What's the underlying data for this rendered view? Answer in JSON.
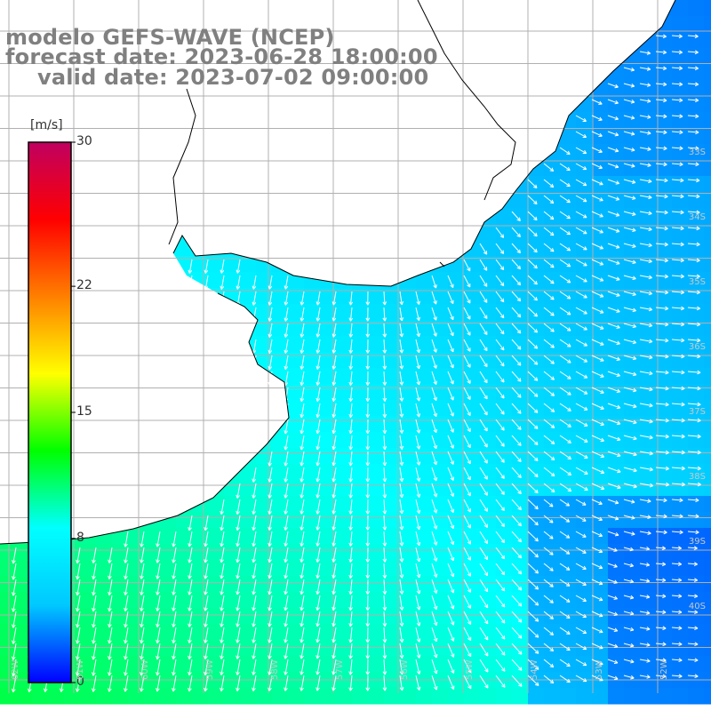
{
  "title": {
    "line1": "modelo GEFS-WAVE (NCEP)",
    "line2": "forecast date: 2023-06-28 18:00:00",
    "line3": "valid date: 2023-07-02 09:00:00"
  },
  "colorbar": {
    "unit": "[m/s]",
    "min": 0,
    "max": 30,
    "ticks": [
      {
        "value": 30,
        "label": "30"
      },
      {
        "value": 22,
        "label": "22"
      },
      {
        "value": 15,
        "label": "15"
      },
      {
        "value": 8,
        "label": "8"
      },
      {
        "value": 0,
        "label": "0"
      }
    ],
    "colors": [
      "#0000ff",
      "#00c8ff",
      "#00ffff",
      "#00ff00",
      "#ffff00",
      "#ff8000",
      "#ff0000",
      "#c00060"
    ]
  },
  "map": {
    "lat_labels": [
      "33S",
      "34S",
      "35S",
      "36S",
      "37S",
      "38S",
      "39S",
      "40S"
    ],
    "lon_labels": [
      "62W",
      "61W",
      "60W",
      "59W",
      "58W",
      "57W",
      "56W",
      "55W",
      "54W",
      "53W",
      "52W"
    ],
    "land_color": "#ffffff",
    "grid_color": "#b0b0b0",
    "coast_color": "#000000",
    "arrow_color": "#ffffff"
  }
}
